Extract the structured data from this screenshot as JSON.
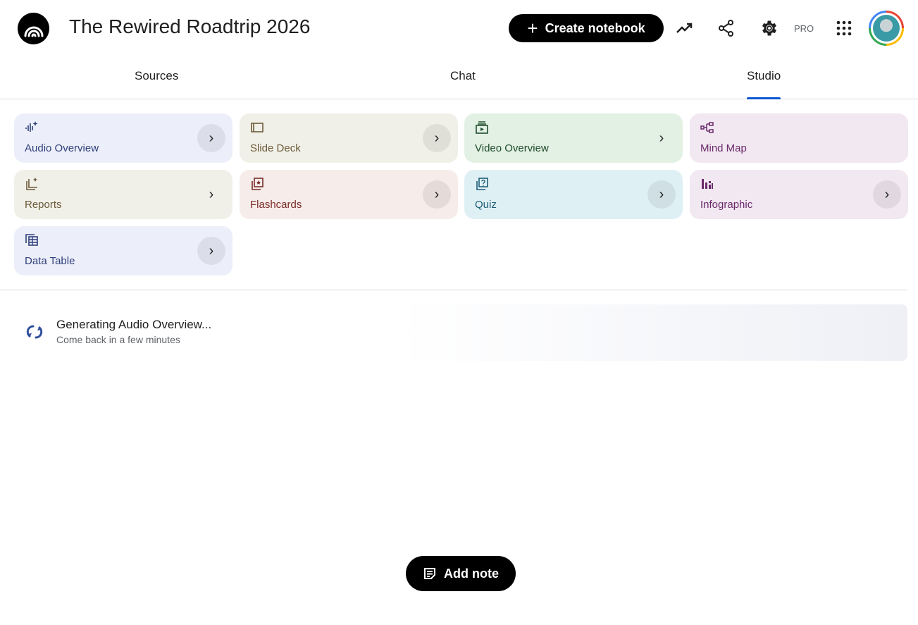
{
  "header": {
    "title": "The Rewired Roadtrip 2026",
    "logo_icon": "notebooklm-logo-icon",
    "create_label": "Create notebook",
    "pro_label": "PRO",
    "icons": [
      "analytics-icon",
      "share-icon",
      "settings-icon",
      "apps-grid-icon",
      "avatar"
    ]
  },
  "tabs": [
    {
      "label": "Sources",
      "active": false
    },
    {
      "label": "Chat",
      "active": false
    },
    {
      "label": "Studio",
      "active": true
    }
  ],
  "studio": {
    "cards": [
      {
        "label": "Audio Overview",
        "icon": "audio-wave-sparkle-icon",
        "bg": "#eceffa",
        "fg": "#2f3f79"
      },
      {
        "label": "Slide Deck",
        "icon": "slides-icon",
        "bg": "#f1f0e8",
        "fg": "#6b5a3a"
      },
      {
        "label": "Video Overview",
        "icon": "video-icon",
        "bg": "#e3f0e4",
        "fg": "#1e4d2b"
      },
      {
        "label": "Mind Map",
        "icon": "mind-map-icon",
        "bg": "#f1e8f1",
        "fg": "#6a2a6a"
      },
      {
        "label": "Reports",
        "icon": "reports-icon",
        "bg": "#f1f0e8",
        "fg": "#6b5a3a"
      },
      {
        "label": "Flashcards",
        "icon": "flashcards-icon",
        "bg": "#f6ece9",
        "fg": "#7a2c28"
      },
      {
        "label": "Quiz",
        "icon": "quiz-icon",
        "bg": "#dff0f5",
        "fg": "#1d5d77"
      },
      {
        "label": "Infographic",
        "icon": "infographic-icon",
        "bg": "#f1e8f1",
        "fg": "#6a2a6a"
      },
      {
        "label": "Data Table",
        "icon": "data-table-icon",
        "bg": "#eceffa",
        "fg": "#2f3f79"
      }
    ],
    "generating": {
      "title": "Generating Audio Overview...",
      "subtitle": "Come back in a few minutes",
      "icon": "sync-icon"
    }
  },
  "add_note_label": "Add note"
}
